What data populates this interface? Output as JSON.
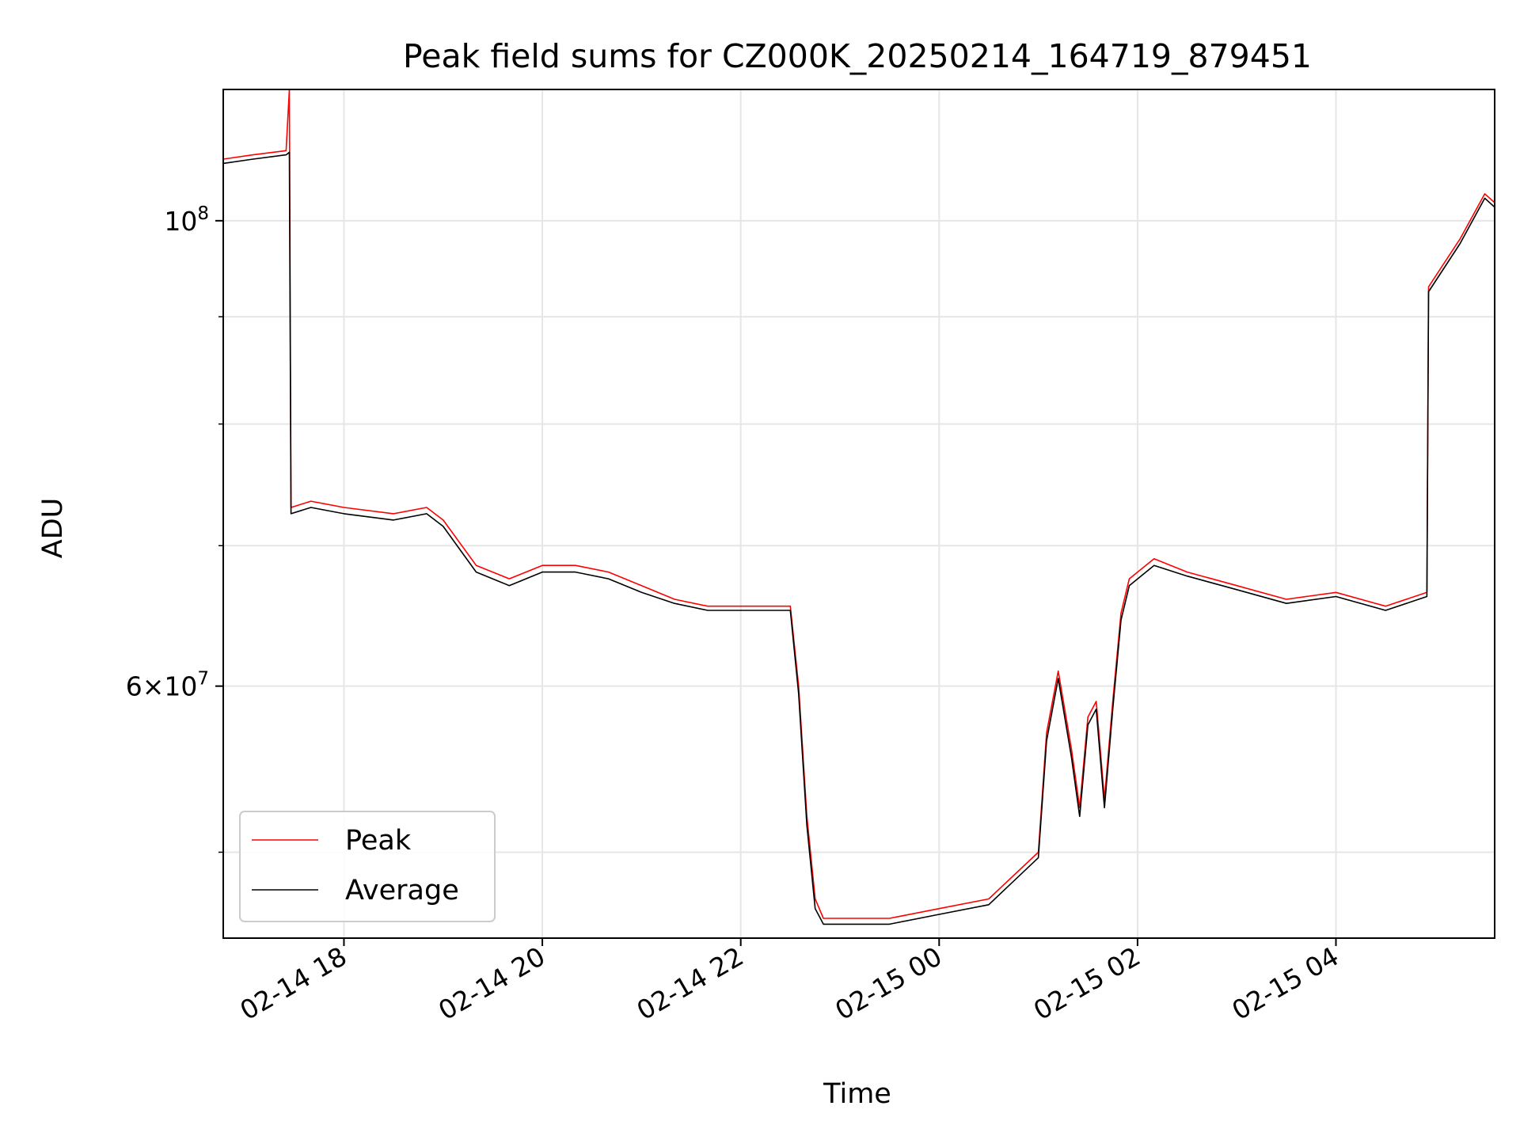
{
  "chart_data": {
    "type": "line",
    "title": "Peak field sums for CZ000K_20250214_164719_879451",
    "xlabel": "Time",
    "ylabel": "ADU",
    "y_scale": "log",
    "x_ticks": [
      "02-14 18",
      "02-14 20",
      "02-14 22",
      "02-15 00",
      "02-15 02",
      "02-15 04"
    ],
    "x_tick_hours": [
      18,
      20,
      22,
      24,
      26,
      28
    ],
    "y_major_ticks": [
      {
        "value": 100000000,
        "base": "10",
        "exp": "8",
        "mant": ""
      },
      {
        "value": 60000000,
        "base": "10",
        "exp": "7",
        "mant": "6×"
      }
    ],
    "y_minor_ticks": [
      50000000,
      70000000,
      80000000,
      90000000
    ],
    "xlim": [
      "02-14 16:47",
      "02-15 05:36"
    ],
    "ylim": [
      45500000,
      115500000
    ],
    "grid": true,
    "legend": {
      "location": "lower-left",
      "entries": [
        {
          "name": "Peak",
          "color": "#ff0000"
        },
        {
          "name": "Average",
          "color": "#000000"
        }
      ]
    },
    "series": [
      {
        "name": "Peak",
        "color": "#ff0000",
        "x": [
          "16:47",
          "17:05",
          "17:25",
          "17:27",
          "17:28",
          "17:40",
          "18:00",
          "18:30",
          "18:50",
          "19:00",
          "19:20",
          "19:40",
          "20:00",
          "20:20",
          "20:40",
          "21:00",
          "21:20",
          "21:40",
          "22:00",
          "22:30",
          "22:35",
          "22:40",
          "22:45",
          "22:50",
          "23:00",
          "23:30",
          "00:00",
          "00:30",
          "01:00",
          "01:05",
          "01:12",
          "01:20",
          "01:25",
          "01:30",
          "01:35",
          "01:40",
          "01:45",
          "01:50",
          "01:55",
          "02:10",
          "02:30",
          "03:00",
          "03:30",
          "04:00",
          "04:30",
          "04:55",
          "04:56",
          "05:15",
          "05:30",
          "05:36"
        ],
        "y": [
          107000000,
          107500000,
          108000000,
          115500000,
          73000000,
          73500000,
          73000000,
          72500000,
          73000000,
          72000000,
          68500000,
          67500000,
          68500000,
          68500000,
          68000000,
          67000000,
          66000000,
          65500000,
          65500000,
          65500000,
          60000000,
          52000000,
          47500000,
          46500000,
          46500000,
          46500000,
          47000000,
          47500000,
          50000000,
          57000000,
          61000000,
          56000000,
          52500000,
          58000000,
          59000000,
          53000000,
          59000000,
          65000000,
          67500000,
          69000000,
          68000000,
          67000000,
          66000000,
          66500000,
          65500000,
          66500000,
          93000000,
          98000000,
          103000000,
          102000000
        ]
      },
      {
        "name": "Average",
        "color": "#000000",
        "x": [
          "16:47",
          "17:05",
          "17:25",
          "17:27",
          "17:28",
          "17:40",
          "18:00",
          "18:30",
          "18:50",
          "19:00",
          "19:20",
          "19:40",
          "20:00",
          "20:20",
          "20:40",
          "21:00",
          "21:20",
          "21:40",
          "22:00",
          "22:30",
          "22:35",
          "22:40",
          "22:45",
          "22:50",
          "23:00",
          "23:30",
          "00:00",
          "00:30",
          "01:00",
          "01:05",
          "01:12",
          "01:20",
          "01:25",
          "01:30",
          "01:35",
          "01:40",
          "01:45",
          "01:50",
          "01:55",
          "02:10",
          "02:30",
          "03:00",
          "03:30",
          "04:00",
          "04:30",
          "04:55",
          "04:56",
          "05:15",
          "05:30",
          "05:36"
        ],
        "y": [
          106500000,
          107000000,
          107500000,
          107800000,
          72500000,
          73000000,
          72500000,
          72000000,
          72500000,
          71500000,
          68000000,
          67000000,
          68000000,
          68000000,
          67500000,
          66500000,
          65700000,
          65200000,
          65200000,
          65200000,
          59500000,
          51500000,
          47000000,
          46200000,
          46200000,
          46200000,
          46700000,
          47200000,
          49700000,
          56500000,
          60500000,
          55500000,
          52000000,
          57500000,
          58500000,
          52500000,
          58500000,
          64500000,
          67000000,
          68500000,
          67700000,
          66700000,
          65700000,
          66200000,
          65200000,
          66200000,
          92500000,
          97500000,
          102500000,
          101500000
        ]
      }
    ]
  }
}
